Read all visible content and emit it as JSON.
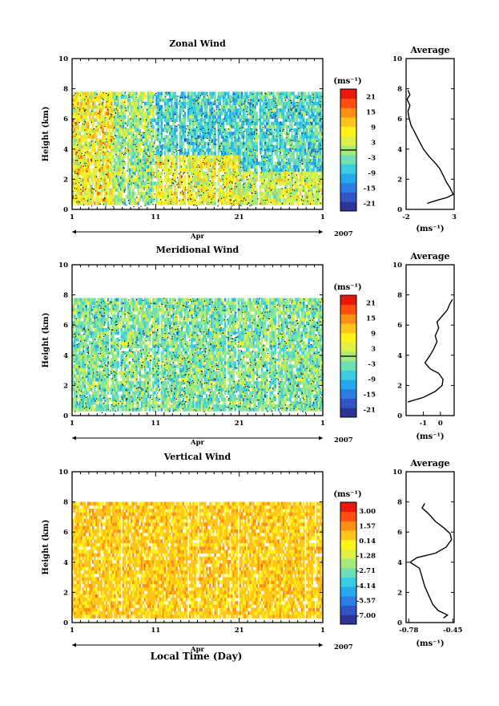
{
  "figure": {
    "x_axis_title": "Local Time (Day)",
    "month_label": "Apr",
    "year_label": "2007",
    "y_axis_label": "Height (km)",
    "avg_title": "Average",
    "unit_label": "(ms⁻¹)",
    "avg_unit_label": "(ms⁻¹)"
  },
  "colorscale": [
    "#2c3496",
    "#2f55c6",
    "#2b7ee4",
    "#26a8ec",
    "#37cde2",
    "#6fe0b4",
    "#a6ea7c",
    "#dff046",
    "#fff31a",
    "#ffc51a",
    "#ff8f14",
    "#ff4e10",
    "#e9180c"
  ],
  "chart_data": [
    {
      "type": "heatmap",
      "title": "Zonal Wind",
      "ylabel": "Height (km)",
      "xlabel": "Apr",
      "ylim": [
        0,
        10
      ],
      "y_ticks": [
        "0",
        "2",
        "4",
        "6",
        "8",
        "10"
      ],
      "x_ticks": [
        "1",
        "11",
        "21",
        "1"
      ],
      "x_tick_values": [
        1,
        11,
        21,
        31
      ],
      "xlim": [
        1,
        31
      ],
      "data_top_km": 7.8,
      "colorbar": {
        "min": -24,
        "max": 24,
        "tick_labels": [
          "21",
          "15",
          "9",
          "3",
          "-3",
          "-9",
          "-15",
          "-21"
        ],
        "tick_values": [
          21,
          15,
          9,
          3,
          -3,
          -9,
          -15,
          -21
        ],
        "zero_line": 0
      },
      "bands": [
        {
          "x0": 1,
          "x1": 6,
          "y0": 0,
          "y1": 7.8,
          "value": 6,
          "sd": 8
        },
        {
          "x0": 6,
          "x1": 11,
          "y0": 0,
          "y1": 7.8,
          "value": 0,
          "sd": 8
        },
        {
          "x0": 11,
          "x1": 21,
          "y0": 3.5,
          "y1": 7.8,
          "value": -6,
          "sd": 7
        },
        {
          "x0": 11,
          "x1": 21,
          "y0": 0,
          "y1": 3.5,
          "value": 5,
          "sd": 7
        },
        {
          "x0": 21,
          "x1": 31,
          "y0": 2.5,
          "y1": 7.8,
          "value": -5,
          "sd": 7
        },
        {
          "x0": 21,
          "x1": 31,
          "y0": 0,
          "y1": 2.5,
          "value": 3,
          "sd": 7
        }
      ],
      "average": {
        "title": "Average",
        "xlim": [
          -2,
          3
        ],
        "x_ticks": [
          "-2",
          "3"
        ],
        "x_tick_values": [
          -2,
          3
        ],
        "ylim": [
          0,
          10
        ],
        "y_ticks": [
          "0",
          "2",
          "4",
          "6",
          "8",
          "10"
        ],
        "profile": [
          {
            "x": 0.2,
            "y": 0.4
          },
          {
            "x": 1.2,
            "y": 0.6
          },
          {
            "x": 2.3,
            "y": 0.8
          },
          {
            "x": 2.9,
            "y": 1.0
          },
          {
            "x": 2.6,
            "y": 1.4
          },
          {
            "x": 2.2,
            "y": 1.8
          },
          {
            "x": 1.9,
            "y": 2.2
          },
          {
            "x": 1.5,
            "y": 2.7
          },
          {
            "x": 1.0,
            "y": 3.1
          },
          {
            "x": 0.4,
            "y": 3.5
          },
          {
            "x": -0.2,
            "y": 4.0
          },
          {
            "x": -0.7,
            "y": 4.6
          },
          {
            "x": -1.1,
            "y": 5.1
          },
          {
            "x": -1.5,
            "y": 5.6
          },
          {
            "x": -1.7,
            "y": 6.1
          },
          {
            "x": -1.8,
            "y": 6.5
          },
          {
            "x": -1.6,
            "y": 6.9
          },
          {
            "x": -1.9,
            "y": 7.3
          },
          {
            "x": -1.6,
            "y": 7.6
          },
          {
            "x": -1.8,
            "y": 7.9
          }
        ]
      }
    },
    {
      "type": "heatmap",
      "title": "Meridional Wind",
      "ylabel": "Height (km)",
      "xlabel": "Apr",
      "ylim": [
        0,
        10
      ],
      "y_ticks": [
        "0",
        "2",
        "4",
        "6",
        "8",
        "10"
      ],
      "x_ticks": [
        "1",
        "11",
        "21",
        "1"
      ],
      "x_tick_values": [
        1,
        11,
        21,
        31
      ],
      "xlim": [
        1,
        31
      ],
      "data_top_km": 7.8,
      "colorbar": {
        "min": -24,
        "max": 24,
        "tick_labels": [
          "21",
          "15",
          "9",
          "3",
          "-3",
          "-9",
          "-15",
          "-21"
        ],
        "tick_values": [
          21,
          15,
          9,
          3,
          -3,
          -9,
          -15,
          -21
        ],
        "zero_line": 0
      },
      "bands": [
        {
          "x0": 1,
          "x1": 31,
          "y0": 0,
          "y1": 7.8,
          "value": -2,
          "sd": 7
        }
      ],
      "average": {
        "title": "Average",
        "xlim": [
          -2,
          0.8
        ],
        "x_ticks": [
          "-1",
          "0"
        ],
        "x_tick_values": [
          -1,
          0
        ],
        "ylim": [
          0,
          10
        ],
        "y_ticks": [
          "0",
          "2",
          "4",
          "6",
          "8",
          "10"
        ],
        "profile": [
          {
            "x": -1.9,
            "y": 0.9
          },
          {
            "x": -1.0,
            "y": 1.2
          },
          {
            "x": -0.3,
            "y": 1.6
          },
          {
            "x": 0.1,
            "y": 2.0
          },
          {
            "x": 0.15,
            "y": 2.4
          },
          {
            "x": -0.1,
            "y": 2.8
          },
          {
            "x": -0.6,
            "y": 3.1
          },
          {
            "x": -0.9,
            "y": 3.5
          },
          {
            "x": -0.6,
            "y": 4.0
          },
          {
            "x": -0.4,
            "y": 4.4
          },
          {
            "x": -0.2,
            "y": 4.9
          },
          {
            "x": -0.3,
            "y": 5.3
          },
          {
            "x": -0.1,
            "y": 5.8
          },
          {
            "x": -0.2,
            "y": 6.2
          },
          {
            "x": 0.1,
            "y": 6.6
          },
          {
            "x": 0.4,
            "y": 7.0
          },
          {
            "x": 0.55,
            "y": 7.4
          },
          {
            "x": 0.7,
            "y": 7.7
          }
        ]
      }
    },
    {
      "type": "heatmap",
      "title": "Vertical Wind",
      "ylabel": "Height (km)",
      "xlabel": "Apr",
      "ylim": [
        0,
        10
      ],
      "y_ticks": [
        "0",
        "2",
        "4",
        "6",
        "8",
        "10"
      ],
      "x_ticks": [
        "1",
        "11",
        "21",
        "1"
      ],
      "x_tick_values": [
        1,
        11,
        21,
        31
      ],
      "xlim": [
        1,
        31
      ],
      "data_top_km": 8.0,
      "colorbar": {
        "min": -7.85,
        "max": 3.85,
        "tick_labels": [
          "3.00",
          "1.57",
          "0.14",
          "-1.28",
          "-2.71",
          "-4.14",
          "-5.57",
          "-7.00"
        ],
        "tick_values": [
          3.0,
          1.57,
          0.14,
          -1.28,
          -2.71,
          -4.14,
          -5.57,
          -7.0
        ],
        "zero_line": null
      },
      "bands": [
        {
          "x0": 1,
          "x1": 31,
          "y0": 0,
          "y1": 8.0,
          "value": 0.6,
          "sd": 0.9
        }
      ],
      "average": {
        "title": "Average",
        "xlim": [
          -0.8,
          -0.44
        ],
        "x_ticks": [
          "-0.78",
          "-0.45"
        ],
        "x_tick_values": [
          -0.78,
          -0.45
        ],
        "ylim": [
          0,
          10
        ],
        "y_ticks": [
          "0",
          "2",
          "4",
          "6",
          "8",
          "10"
        ],
        "profile": [
          {
            "x": -0.52,
            "y": 0.3
          },
          {
            "x": -0.49,
            "y": 0.5
          },
          {
            "x": -0.56,
            "y": 0.8
          },
          {
            "x": -0.6,
            "y": 1.2
          },
          {
            "x": -0.63,
            "y": 1.8
          },
          {
            "x": -0.66,
            "y": 2.4
          },
          {
            "x": -0.68,
            "y": 3.0
          },
          {
            "x": -0.7,
            "y": 3.6
          },
          {
            "x": -0.77,
            "y": 4.0
          },
          {
            "x": -0.72,
            "y": 4.3
          },
          {
            "x": -0.58,
            "y": 4.6
          },
          {
            "x": -0.5,
            "y": 5.0
          },
          {
            "x": -0.46,
            "y": 5.5
          },
          {
            "x": -0.47,
            "y": 5.9
          },
          {
            "x": -0.52,
            "y": 6.3
          },
          {
            "x": -0.58,
            "y": 6.7
          },
          {
            "x": -0.63,
            "y": 7.2
          },
          {
            "x": -0.68,
            "y": 7.6
          },
          {
            "x": -0.66,
            "y": 7.9
          }
        ]
      }
    }
  ]
}
